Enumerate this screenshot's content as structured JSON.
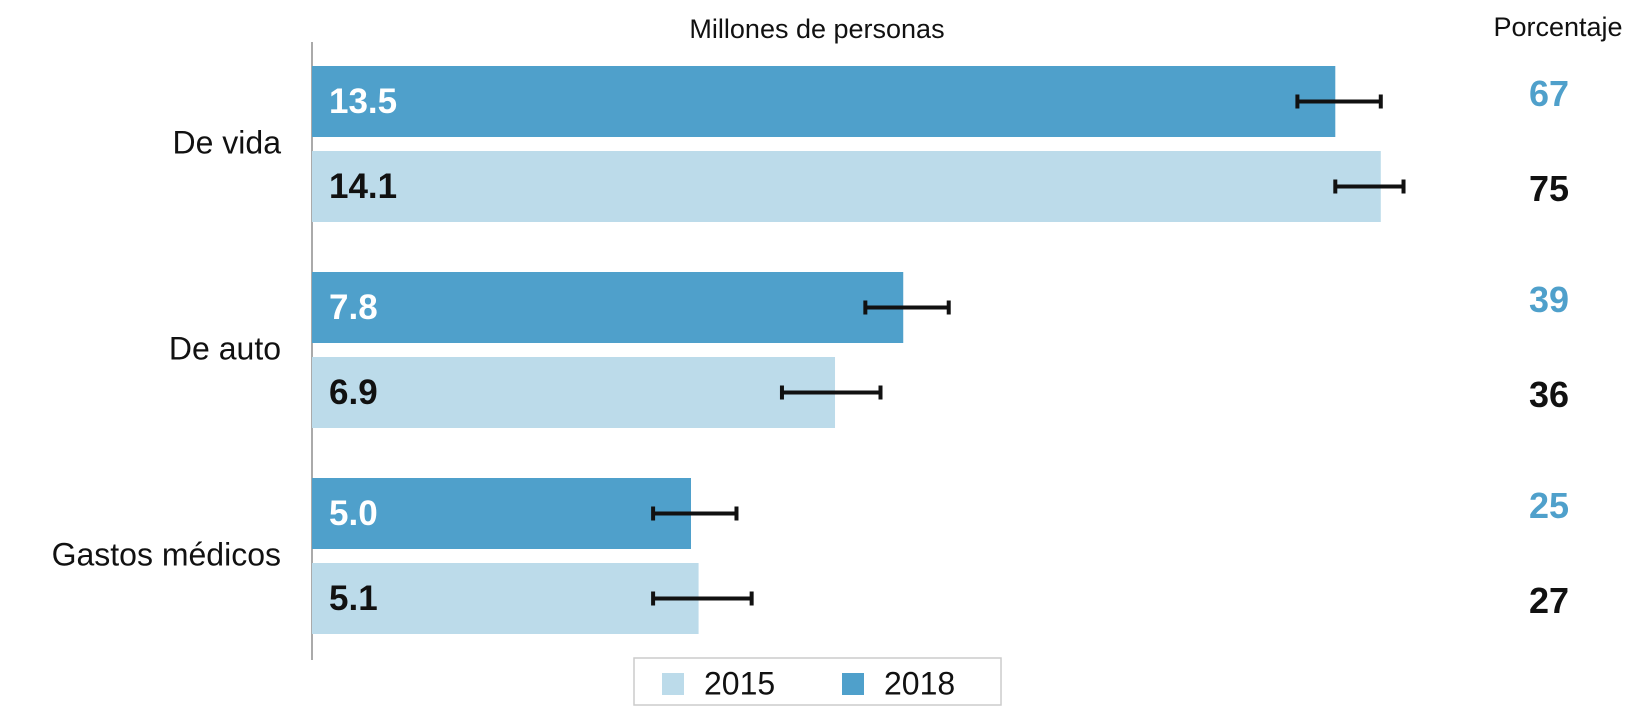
{
  "chart_data": {
    "type": "bar",
    "orientation": "horizontal",
    "xlabel": "Millones de personas",
    "percent_label": "Porcentaje",
    "categories": [
      "De vida",
      "De auto",
      "Gastos médicos"
    ],
    "series": [
      {
        "name": "2015",
        "color": "#bcdbea",
        "label_color": "#111111",
        "values": [
          14.1,
          6.9,
          5.1
        ],
        "value_labels": [
          "14.1",
          "6.9",
          "5.1"
        ],
        "intervals": [
          [
            13.5,
            14.4
          ],
          [
            6.2,
            7.5
          ],
          [
            4.5,
            5.8
          ]
        ],
        "percentages": [
          75,
          36,
          27
        ]
      },
      {
        "name": "2018",
        "color": "#4fa0cb",
        "label_color": "#ffffff",
        "values": [
          13.5,
          7.8,
          5.0
        ],
        "value_labels": [
          "13.5",
          "7.8",
          "5.0"
        ],
        "intervals": [
          [
            13.0,
            14.1
          ],
          [
            7.3,
            8.4
          ],
          [
            4.5,
            5.6
          ]
        ],
        "percentages": [
          67,
          39,
          25
        ]
      }
    ],
    "legend": "bottom"
  }
}
